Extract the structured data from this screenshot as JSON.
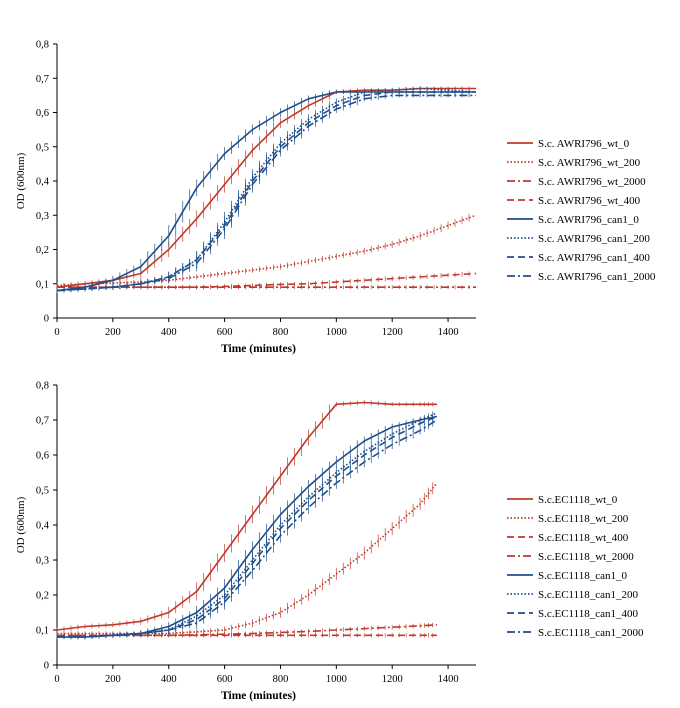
{
  "colors": {
    "red": "#C0392B",
    "blue": "#1F4E8C",
    "axis": "#000000"
  },
  "chart_data": [
    {
      "type": "line",
      "title": "",
      "xlabel": "Time (minutes)",
      "ylabel": "OD (600nm)",
      "xlim": [
        0,
        1500
      ],
      "ylim": [
        0,
        0.8
      ],
      "xticks": [
        "0",
        "200",
        "400",
        "600",
        "800",
        "1000",
        "1200",
        "1400"
      ],
      "xtick_values": [
        0,
        200,
        400,
        600,
        800,
        1000,
        1200,
        1400
      ],
      "yticks": [
        "0",
        "0,1",
        "0,2",
        "0,3",
        "0,4",
        "0,5",
        "0,6",
        "0,7",
        "0,8"
      ],
      "ytick_values": [
        0,
        0.1,
        0.2,
        0.3,
        0.4,
        0.5,
        0.6,
        0.7,
        0.8
      ],
      "legend_position": "right",
      "x": [
        0,
        100,
        200,
        300,
        400,
        500,
        600,
        700,
        800,
        900,
        1000,
        1100,
        1200,
        1300,
        1400,
        1500
      ],
      "series": [
        {
          "name": "S.c. AWRI796_wt_0",
          "color": "red",
          "dash": "solid",
          "values": [
            0.09,
            0.1,
            0.11,
            0.13,
            0.2,
            0.29,
            0.39,
            0.49,
            0.57,
            0.62,
            0.66,
            0.665,
            0.665,
            0.67,
            0.67,
            0.67
          ]
        },
        {
          "name": "S.c. AWRI796_wt_200",
          "color": "red",
          "dash": "dot",
          "values": [
            0.095,
            0.1,
            0.102,
            0.105,
            0.11,
            0.12,
            0.13,
            0.14,
            0.15,
            0.165,
            0.18,
            0.195,
            0.215,
            0.24,
            0.27,
            0.3
          ]
        },
        {
          "name": "S.c. AWRI796_wt_2000",
          "color": "red",
          "dash": "dashdot",
          "values": [
            0.09,
            0.09,
            0.09,
            0.09,
            0.09,
            0.09,
            0.09,
            0.09,
            0.09,
            0.09,
            0.09,
            0.09,
            0.09,
            0.09,
            0.09,
            0.09
          ]
        },
        {
          "name": "S.c. AWRI796_wt_400",
          "color": "red",
          "dash": "dash",
          "values": [
            0.09,
            0.09,
            0.09,
            0.09,
            0.09,
            0.09,
            0.092,
            0.095,
            0.098,
            0.1,
            0.105,
            0.11,
            0.115,
            0.12,
            0.125,
            0.13
          ]
        },
        {
          "name": "S.c. AWRI796_can1_0",
          "color": "blue",
          "dash": "solid",
          "values": [
            0.08,
            0.09,
            0.11,
            0.15,
            0.24,
            0.38,
            0.48,
            0.55,
            0.6,
            0.64,
            0.66,
            0.66,
            0.66,
            0.66,
            0.66,
            0.66
          ]
        },
        {
          "name": "S.c. AWRI796_can1_200",
          "color": "blue",
          "dash": "dot",
          "values": [
            0.08,
            0.085,
            0.09,
            0.1,
            0.12,
            0.17,
            0.28,
            0.41,
            0.51,
            0.58,
            0.63,
            0.66,
            0.665,
            0.67,
            0.665,
            0.66
          ]
        },
        {
          "name": "S.c. AWRI796_can1_400",
          "color": "blue",
          "dash": "dash",
          "values": [
            0.08,
            0.085,
            0.09,
            0.1,
            0.12,
            0.17,
            0.27,
            0.4,
            0.5,
            0.57,
            0.62,
            0.65,
            0.66,
            0.66,
            0.66,
            0.66
          ]
        },
        {
          "name": "S.c. AWRI796_can1_2000",
          "color": "blue",
          "dash": "dashdot",
          "values": [
            0.08,
            0.085,
            0.09,
            0.1,
            0.115,
            0.16,
            0.26,
            0.39,
            0.49,
            0.56,
            0.61,
            0.64,
            0.65,
            0.65,
            0.65,
            0.65
          ]
        }
      ]
    },
    {
      "type": "line",
      "title": "",
      "xlabel": "Time (minutes)",
      "ylabel": "OD (600nm)",
      "xlim": [
        0,
        1500
      ],
      "ylim": [
        0,
        0.8
      ],
      "xticks": [
        "0",
        "200",
        "400",
        "600",
        "800",
        "1000",
        "1200",
        "1400"
      ],
      "xtick_values": [
        0,
        200,
        400,
        600,
        800,
        1000,
        1200,
        1400
      ],
      "yticks": [
        "0",
        "0,1",
        "0,2",
        "0,3",
        "0,4",
        "0,5",
        "0,6",
        "0,7",
        "0,8"
      ],
      "ytick_values": [
        0,
        0.1,
        0.2,
        0.3,
        0.4,
        0.5,
        0.6,
        0.7,
        0.8
      ],
      "legend_position": "right",
      "x": [
        0,
        100,
        200,
        300,
        400,
        500,
        600,
        700,
        800,
        900,
        1000,
        1100,
        1200,
        1300,
        1360
      ],
      "series": [
        {
          "name": "S.c.EC1118_wt_0",
          "color": "red",
          "dash": "solid",
          "values": [
            0.1,
            0.11,
            0.115,
            0.125,
            0.15,
            0.21,
            0.32,
            0.43,
            0.54,
            0.65,
            0.745,
            0.75,
            0.745,
            0.745,
            0.745
          ]
        },
        {
          "name": "S.c.EC1118_wt_200",
          "color": "red",
          "dash": "dot",
          "values": [
            0.09,
            0.09,
            0.09,
            0.09,
            0.09,
            0.095,
            0.1,
            0.12,
            0.15,
            0.2,
            0.26,
            0.32,
            0.39,
            0.46,
            0.52
          ]
        },
        {
          "name": "S.c.EC1118_wt_400",
          "color": "red",
          "dash": "dash",
          "values": [
            0.085,
            0.085,
            0.085,
            0.085,
            0.085,
            0.085,
            0.085,
            0.085,
            0.085,
            0.085,
            0.085,
            0.085,
            0.085,
            0.085,
            0.085
          ]
        },
        {
          "name": "S.c.EC1118_wt_2000",
          "color": "red",
          "dash": "dashdot",
          "values": [
            0.085,
            0.085,
            0.085,
            0.085,
            0.085,
            0.086,
            0.088,
            0.09,
            0.093,
            0.096,
            0.1,
            0.104,
            0.108,
            0.112,
            0.115
          ]
        },
        {
          "name": "S.c.EC1118_can1_0",
          "color": "blue",
          "dash": "solid",
          "values": [
            0.08,
            0.08,
            0.085,
            0.09,
            0.11,
            0.15,
            0.22,
            0.33,
            0.43,
            0.51,
            0.58,
            0.64,
            0.68,
            0.7,
            0.71
          ]
        },
        {
          "name": "S.c.EC1118_can1_200",
          "color": "blue",
          "dash": "dot",
          "values": [
            0.08,
            0.08,
            0.085,
            0.09,
            0.1,
            0.14,
            0.2,
            0.3,
            0.4,
            0.48,
            0.55,
            0.61,
            0.66,
            0.7,
            0.72
          ]
        },
        {
          "name": "S.c.EC1118_can1_400",
          "color": "blue",
          "dash": "dash",
          "values": [
            0.08,
            0.08,
            0.085,
            0.09,
            0.1,
            0.13,
            0.19,
            0.29,
            0.39,
            0.47,
            0.54,
            0.6,
            0.65,
            0.69,
            0.71
          ]
        },
        {
          "name": "S.c.EC1118_can1_2000",
          "color": "blue",
          "dash": "dashdot",
          "values": [
            0.08,
            0.08,
            0.085,
            0.09,
            0.1,
            0.12,
            0.18,
            0.27,
            0.37,
            0.45,
            0.52,
            0.58,
            0.63,
            0.67,
            0.7
          ]
        }
      ]
    }
  ]
}
